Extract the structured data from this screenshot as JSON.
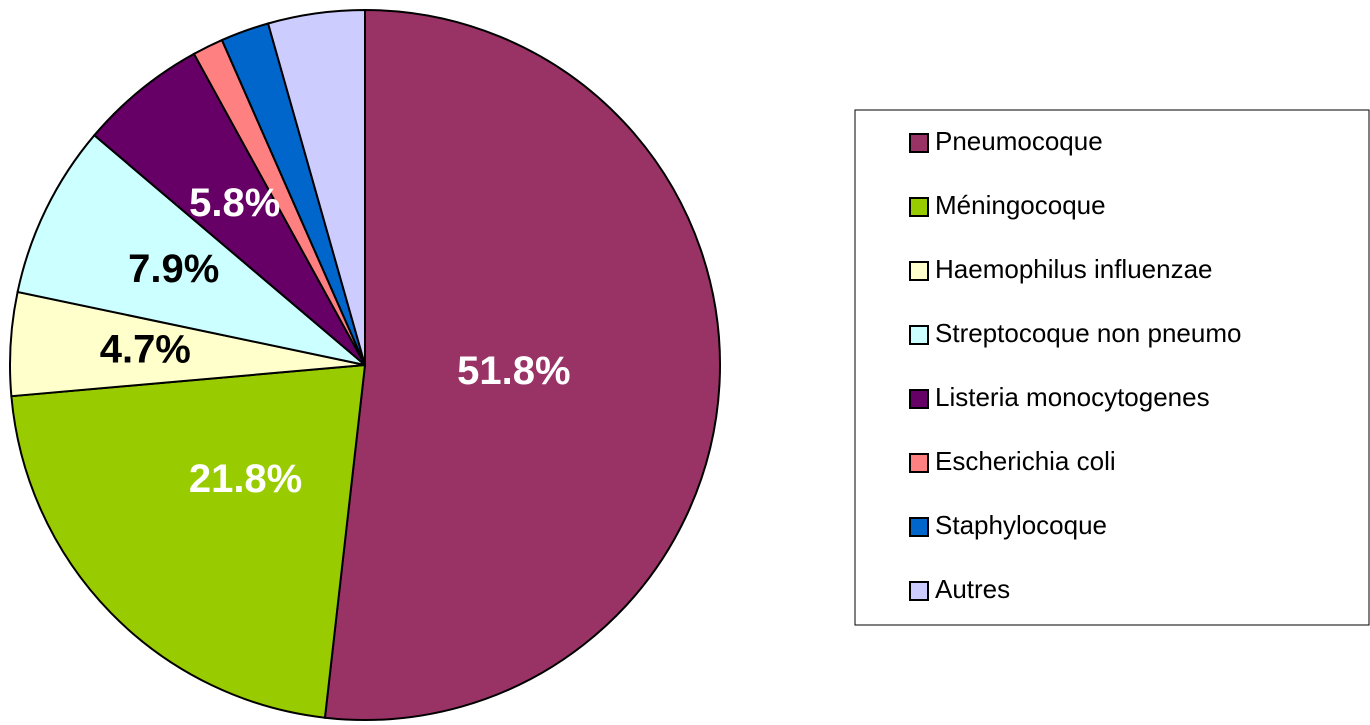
{
  "chart_data": {
    "type": "pie",
    "categories": [
      "Pneumocoque",
      "Méningocoque",
      "Haemophilus influenzae",
      "Streptocoque non pneumo",
      "Listeria monocytogenes",
      "Escherichia coli",
      "Staphylocoque",
      "Autres"
    ],
    "values": [
      51.8,
      21.8,
      4.7,
      7.9,
      5.8,
      1.4,
      2.2,
      4.4
    ],
    "value_labels": [
      "51.8%",
      "21.8%",
      "4.7%",
      "7.9%",
      "5.8%",
      null,
      null,
      null
    ],
    "colors": [
      "#993366",
      "#99CC00",
      "#FFFFCC",
      "#CCFFFF",
      "#660066",
      "#FF8080",
      "#0066CC",
      "#CCCCFF"
    ],
    "legend": "right"
  }
}
